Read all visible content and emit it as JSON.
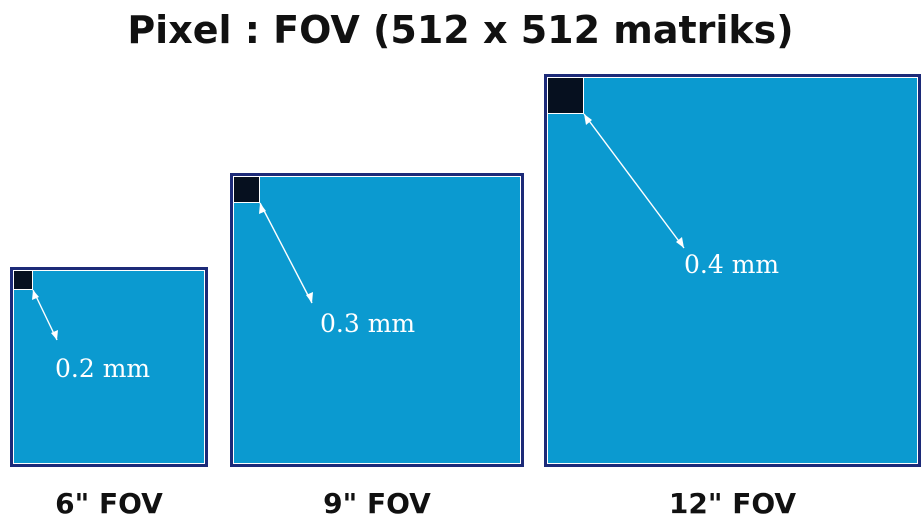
{
  "title": "Pixel : FOV (512 x 512 matriks)",
  "colors": {
    "fov_fill": "#0b9ad0",
    "fov_border": "#1c2a78",
    "pixel": "#06101f",
    "arrow": "#ffffff"
  },
  "panels": [
    {
      "fov_label": "6\" FOV",
      "pixel_size": "0.2 mm"
    },
    {
      "fov_label": "9\" FOV",
      "pixel_size": "0.3 mm"
    },
    {
      "fov_label": "12\" FOV",
      "pixel_size": "0.4 mm"
    }
  ]
}
